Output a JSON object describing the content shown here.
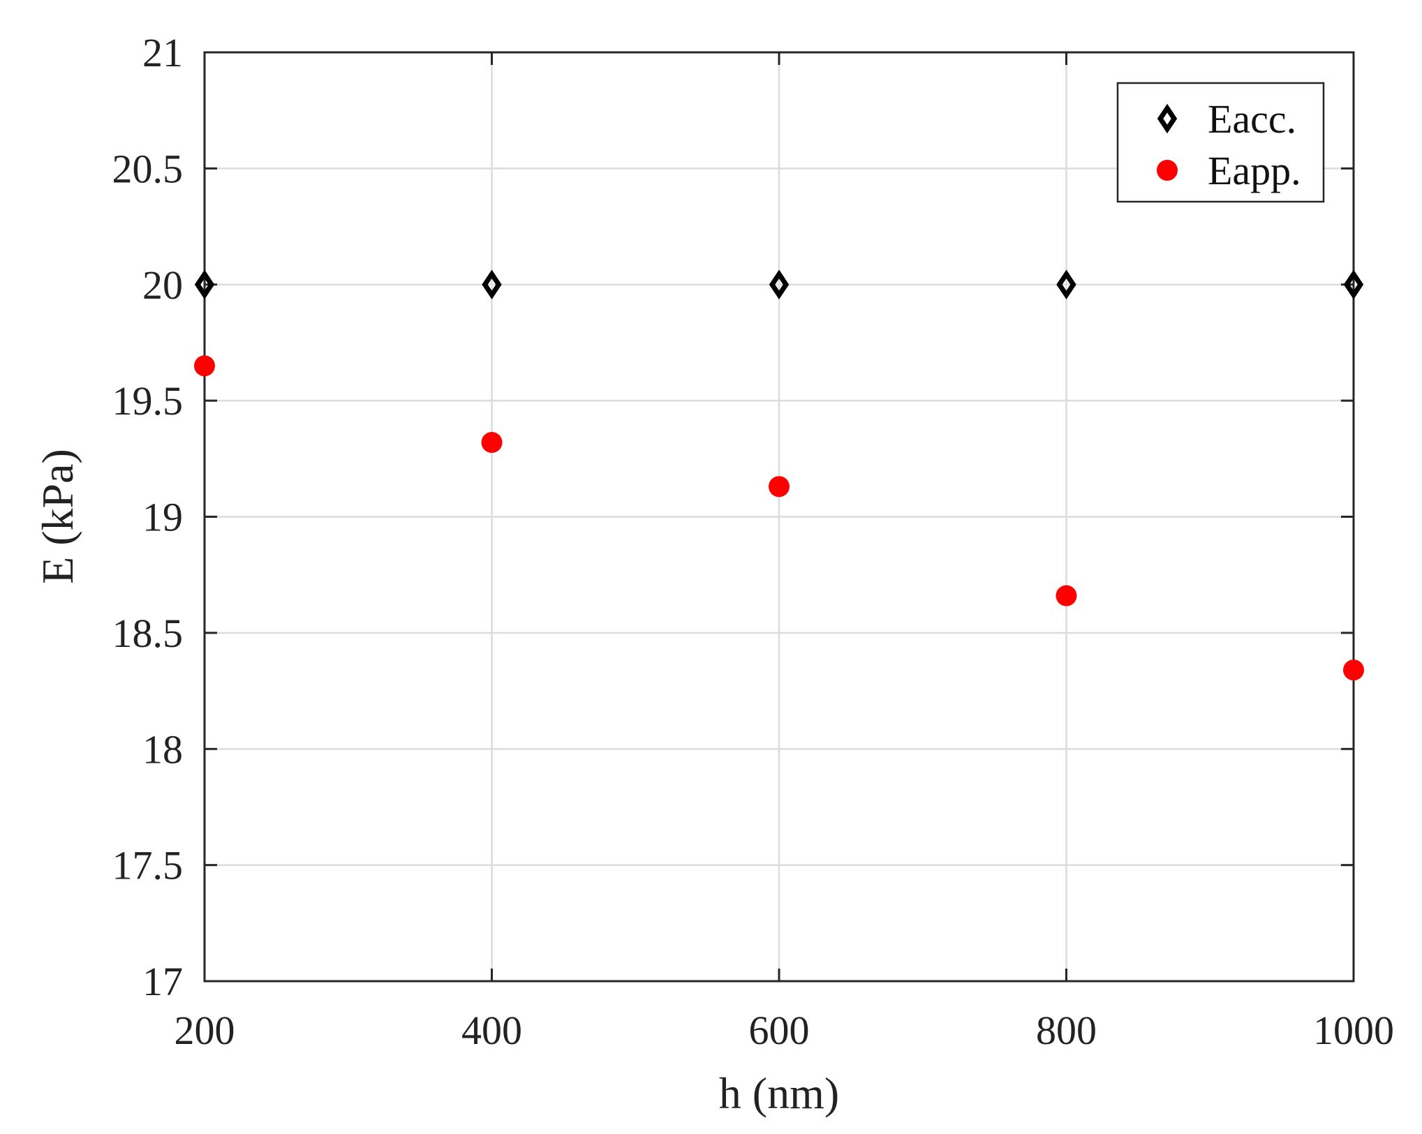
{
  "chart_data": {
    "type": "scatter",
    "title": "",
    "xlabel": "h (nm)",
    "ylabel": "E (kPa)",
    "xlim": [
      200,
      1000
    ],
    "ylim": [
      17,
      21
    ],
    "xticks": [
      200,
      400,
      600,
      800,
      1000
    ],
    "yticks": [
      17,
      17.5,
      18,
      18.5,
      19,
      19.5,
      20,
      20.5,
      21
    ],
    "xtick_labels": [
      "200",
      "400",
      "600",
      "800",
      "1000"
    ],
    "ytick_labels": [
      "17",
      "17.5",
      "18",
      "18.5",
      "19",
      "19.5",
      "20",
      "20.5",
      "21"
    ],
    "grid": true,
    "legend_position": "top-right",
    "series": [
      {
        "name": "Eacc.",
        "marker": "diamond",
        "color": "#000000",
        "x": [
          200,
          400,
          600,
          800,
          1000
        ],
        "y": [
          20.0,
          20.0,
          20.0,
          20.0,
          20.0
        ]
      },
      {
        "name": "Eapp.",
        "marker": "circle",
        "color": "#ff0000",
        "x": [
          200,
          400,
          600,
          800,
          1000
        ],
        "y": [
          19.65,
          19.32,
          19.13,
          18.66,
          18.34
        ]
      }
    ]
  }
}
